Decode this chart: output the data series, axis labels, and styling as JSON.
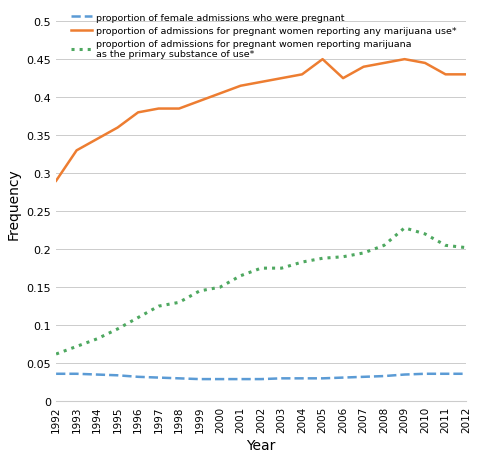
{
  "years": [
    1992,
    1993,
    1994,
    1995,
    1996,
    1997,
    1998,
    1999,
    2000,
    2001,
    2002,
    2003,
    2004,
    2005,
    2006,
    2007,
    2008,
    2009,
    2010,
    2011,
    2012
  ],
  "blue_dashed": [
    0.036,
    0.036,
    0.035,
    0.034,
    0.032,
    0.031,
    0.03,
    0.029,
    0.029,
    0.029,
    0.029,
    0.03,
    0.03,
    0.03,
    0.031,
    0.032,
    0.033,
    0.035,
    0.036,
    0.036,
    0.036
  ],
  "orange_solid": [
    0.29,
    0.33,
    0.345,
    0.36,
    0.38,
    0.385,
    0.385,
    0.395,
    0.405,
    0.415,
    0.42,
    0.425,
    0.43,
    0.45,
    0.425,
    0.44,
    0.445,
    0.45,
    0.445,
    0.43,
    0.43
  ],
  "green_dotted": [
    0.062,
    0.072,
    0.082,
    0.095,
    0.11,
    0.125,
    0.13,
    0.145,
    0.15,
    0.165,
    0.175,
    0.175,
    0.183,
    0.188,
    0.19,
    0.195,
    0.205,
    0.228,
    0.22,
    0.205,
    0.202
  ],
  "blue_color": "#5b9bd5",
  "orange_color": "#ed7d31",
  "green_color": "#4ea860",
  "legend_blue": "proportion of female admissions who were pregnant",
  "legend_orange": "proportion of admissions for pregnant women reporting any marijuana use*",
  "legend_green": "proportion of admissions for pregnant women reporting marijuana\nas the primary substance of use*",
  "xlabel": "Year",
  "ylabel": "Frequency",
  "ylim": [
    0,
    0.52
  ],
  "yticks": [
    0,
    0.05,
    0.1,
    0.15,
    0.2,
    0.25,
    0.3,
    0.35,
    0.4,
    0.45,
    0.5
  ],
  "background_color": "#ffffff",
  "grid_color": "#cccccc"
}
